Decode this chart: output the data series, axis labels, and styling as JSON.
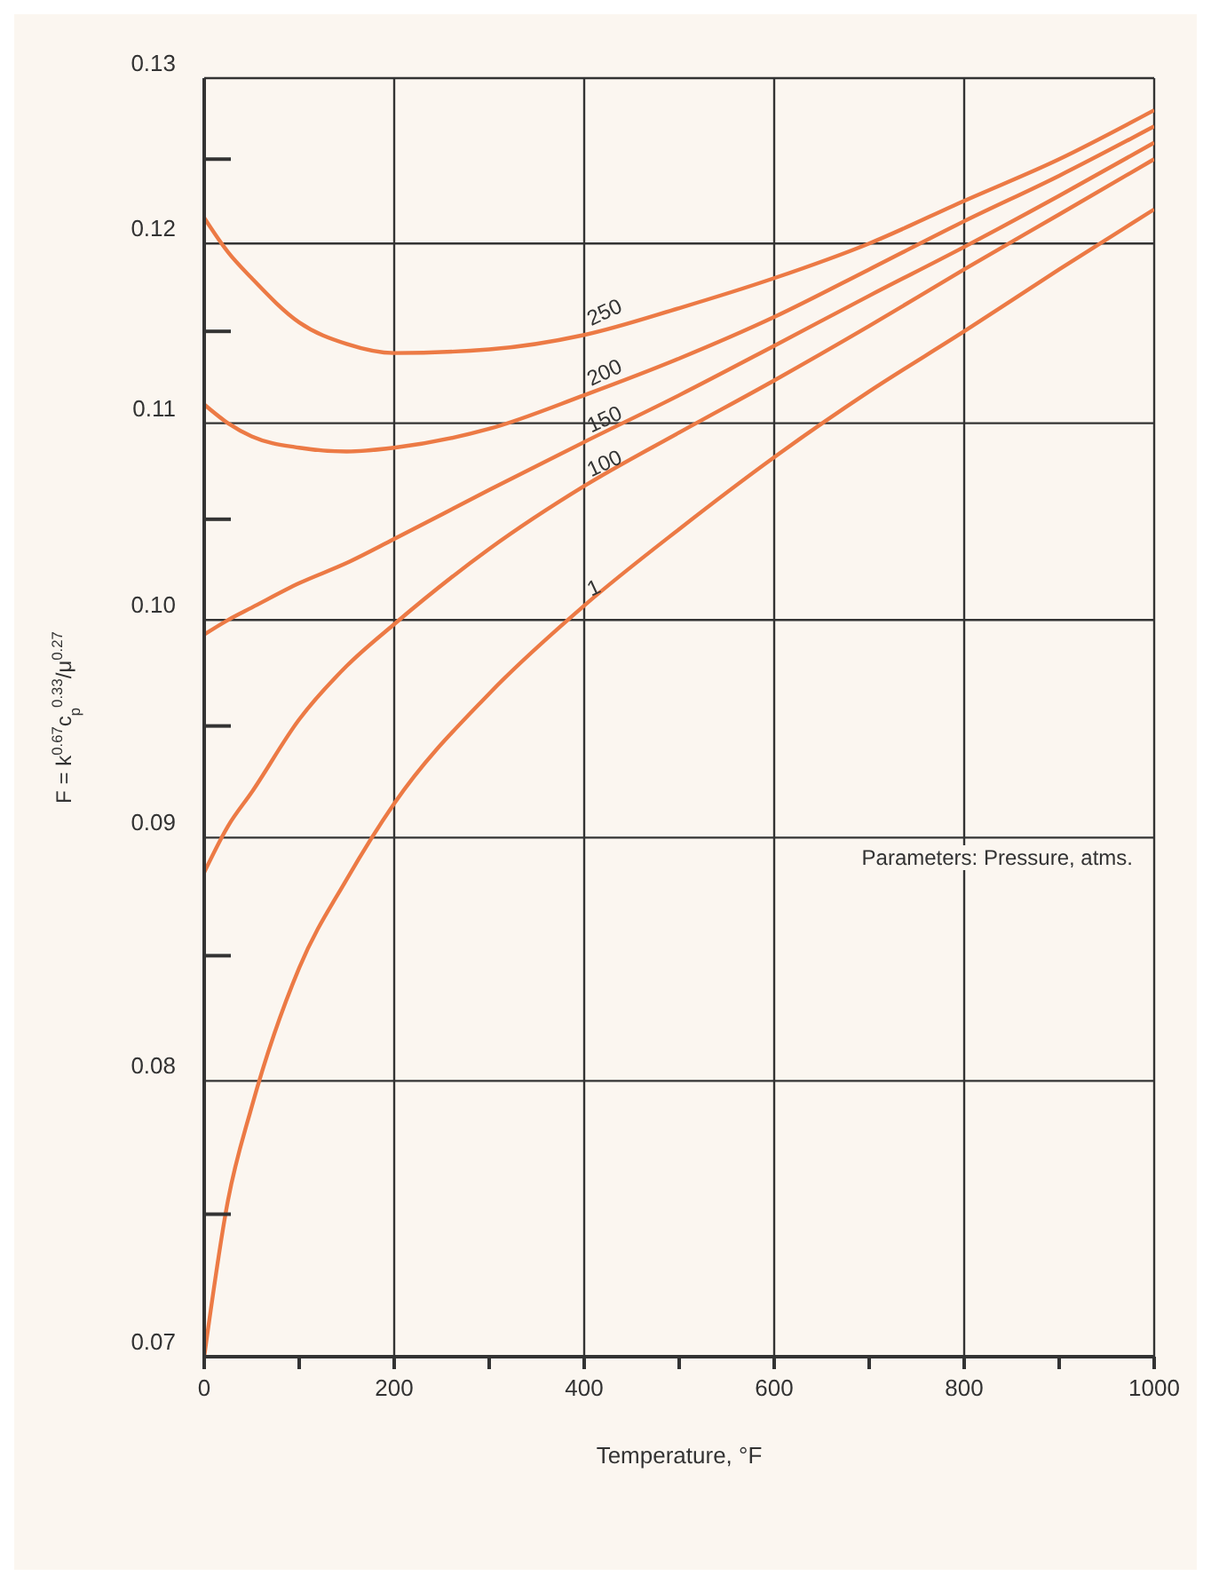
{
  "chart_data": {
    "type": "line",
    "xlabel": "Temperature, °F",
    "ylabel": "F = k$^{0.67}$c$_{p}$$^{0.33}$/μ$^{0.27}$",
    "annotations": [
      "Parameters: Pressure, atms."
    ],
    "x": [
      0,
      25,
      50,
      100,
      150,
      200,
      300,
      400,
      500,
      600,
      700,
      800,
      900,
      1000
    ],
    "series": [
      {
        "name": "250",
        "color": "#ec7a45",
        "values": [
          0.1215,
          0.1195,
          0.118,
          0.1155,
          0.1143,
          0.1138,
          0.114,
          0.1148,
          0.1163,
          0.118,
          0.12,
          0.1225,
          0.125,
          0.128
        ]
      },
      {
        "name": "200",
        "color": "#ec7a45",
        "values": [
          0.111,
          0.11,
          0.1093,
          0.1087,
          0.1085,
          0.1087,
          0.1097,
          0.1115,
          0.1135,
          0.1158,
          0.1185,
          0.1213,
          0.124,
          0.127
        ]
      },
      {
        "name": "150",
        "color": "#ec7a45",
        "values": [
          0.0993,
          0.1,
          0.1006,
          0.1018,
          0.1028,
          0.104,
          0.1065,
          0.109,
          0.1115,
          0.1142,
          0.117,
          0.1198,
          0.1228,
          0.126
        ]
      },
      {
        "name": "100",
        "color": "#ec7a45",
        "values": [
          0.0885,
          0.0905,
          0.092,
          0.0953,
          0.0978,
          0.0998,
          0.1035,
          0.1067,
          0.1095,
          0.1123,
          0.1153,
          0.1185,
          0.1217,
          0.125
        ]
      },
      {
        "name": "1",
        "color": "#ec7a45",
        "values": [
          0.07,
          0.0755,
          0.079,
          0.0845,
          0.0882,
          0.0915,
          0.0965,
          0.1007,
          0.1045,
          0.1082,
          0.1117,
          0.115,
          0.1185,
          0.122
        ]
      }
    ],
    "xlim": [
      0,
      1000
    ],
    "xticks": [
      0,
      {
        "value": 100,
        "label": null
      },
      200,
      {
        "value": 300,
        "label": null
      },
      400,
      {
        "value": 500,
        "label": null
      },
      600,
      {
        "value": 700,
        "label": null
      },
      800,
      {
        "value": 900,
        "label": null
      },
      1000
    ],
    "ylim": [
      0.07,
      0.13
    ],
    "yticks": [
      0.07,
      {
        "value": 0.075,
        "label": null
      },
      0.08,
      {
        "value": 0.085,
        "label": null
      },
      0.09,
      {
        "value": 0.095,
        "label": null
      },
      {
        "value": 0.1,
        "label": "0.10"
      },
      {
        "value": 0.105,
        "label": null
      },
      0.11,
      {
        "value": 0.115,
        "label": null
      },
      0.12,
      {
        "value": 0.125,
        "label": null
      },
      0.13
    ],
    "log": "y",
    "grid": true,
    "legend": false,
    "marker": "none",
    "line_style": "solid"
  }
}
